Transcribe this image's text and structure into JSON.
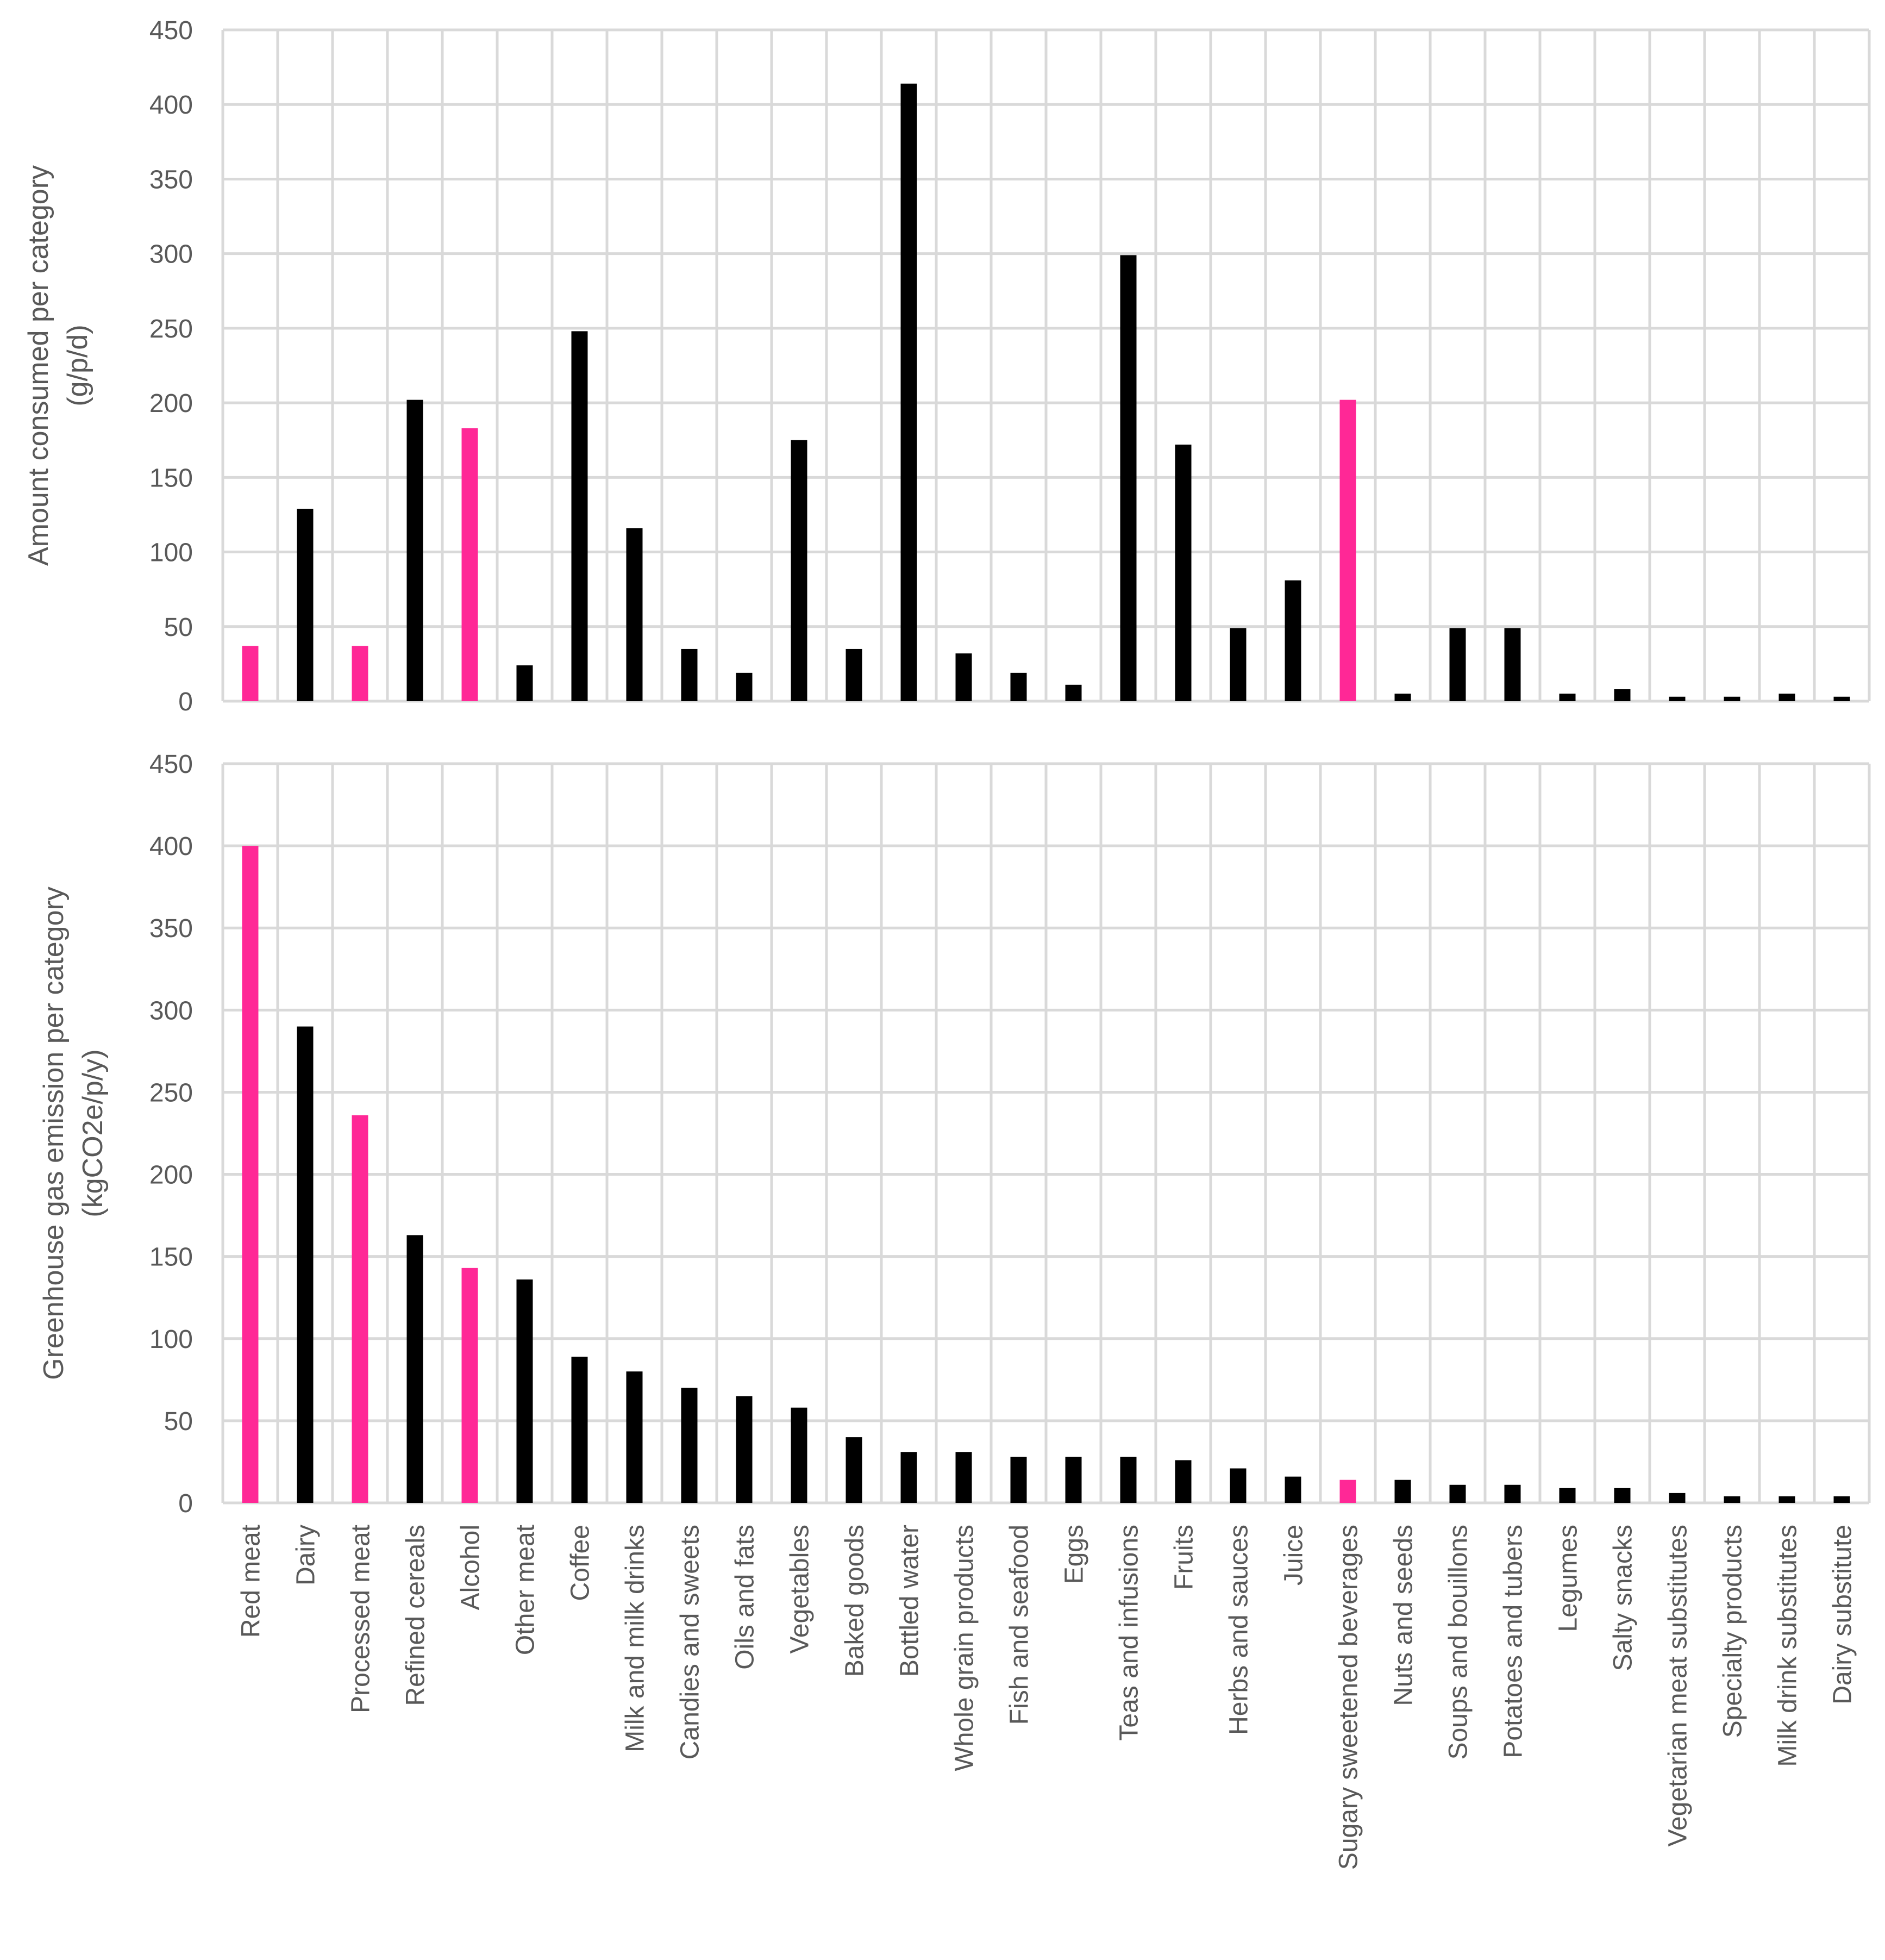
{
  "colors": {
    "highlight": "#ff2896",
    "normal": "#000000",
    "grid": "#d9d9d9",
    "text": "#595959"
  },
  "chart_data": [
    {
      "type": "bar",
      "title": "",
      "xlabel": "",
      "ylabel_lines": [
        "Amount consumed per category",
        "(g/p/d)"
      ],
      "ylim": [
        0,
        450
      ],
      "yticks": [
        0,
        50,
        100,
        150,
        200,
        250,
        300,
        350,
        400,
        450
      ],
      "grid": true,
      "categories": [
        "Red meat",
        "Dairy",
        "Processed meat",
        "Refined cereals",
        "Alcohol",
        "Other meat",
        "Coffee",
        "Milk and milk drinks",
        "Candies and sweets",
        "Oils and fats",
        "Vegetables",
        "Baked goods",
        "Bottled water",
        "Whole grain products",
        "Fish and seafood",
        "Eggs",
        "Teas and infusions",
        "Fruits",
        "Herbs and sauces",
        "Juice",
        "Sugary sweetened beverages",
        "Nuts and seeds",
        "Soups and bouillons",
        "Potatoes and tubers",
        "Legumes",
        "Salty snacks",
        "Vegetarian meat substitutes",
        "Specialty products",
        "Milk drink substitutes",
        "Dairy substitute"
      ],
      "values": [
        37,
        129,
        37,
        202,
        183,
        24,
        248,
        116,
        35,
        19,
        175,
        35,
        414,
        32,
        19,
        11,
        299,
        172,
        49,
        81,
        202,
        5,
        49,
        49,
        5,
        8,
        3,
        3,
        5,
        3
      ],
      "highlight": [
        "Red meat",
        "Processed meat",
        "Alcohol",
        "Sugary sweetened beverages"
      ]
    },
    {
      "type": "bar",
      "title": "",
      "xlabel": "",
      "ylabel_lines": [
        "Greenhouse gas emission per category",
        "(kgCO2e/p/y)"
      ],
      "ylim": [
        0,
        450
      ],
      "yticks": [
        0,
        50,
        100,
        150,
        200,
        250,
        300,
        350,
        400,
        450
      ],
      "grid": true,
      "categories": [
        "Red meat",
        "Dairy",
        "Processed meat",
        "Refined cereals",
        "Alcohol",
        "Other meat",
        "Coffee",
        "Milk and milk drinks",
        "Candies and sweets",
        "Oils and fats",
        "Vegetables",
        "Baked goods",
        "Bottled water",
        "Whole grain products",
        "Fish and seafood",
        "Eggs",
        "Teas and infusions",
        "Fruits",
        "Herbs and sauces",
        "Juice",
        "Sugary sweetened beverages",
        "Nuts and seeds",
        "Soups and bouillons",
        "Potatoes and tubers",
        "Legumes",
        "Salty snacks",
        "Vegetarian meat substitutes",
        "Specialty products",
        "Milk drink substitutes",
        "Dairy substitute"
      ],
      "values": [
        400,
        290,
        236,
        163,
        143,
        136,
        89,
        80,
        70,
        65,
        58,
        40,
        31,
        31,
        28,
        28,
        28,
        26,
        21,
        16,
        14,
        14,
        11,
        11,
        9,
        9,
        6,
        4,
        4,
        4
      ],
      "highlight": [
        "Red meat",
        "Processed meat",
        "Alcohol",
        "Sugary sweetened beverages"
      ]
    }
  ]
}
